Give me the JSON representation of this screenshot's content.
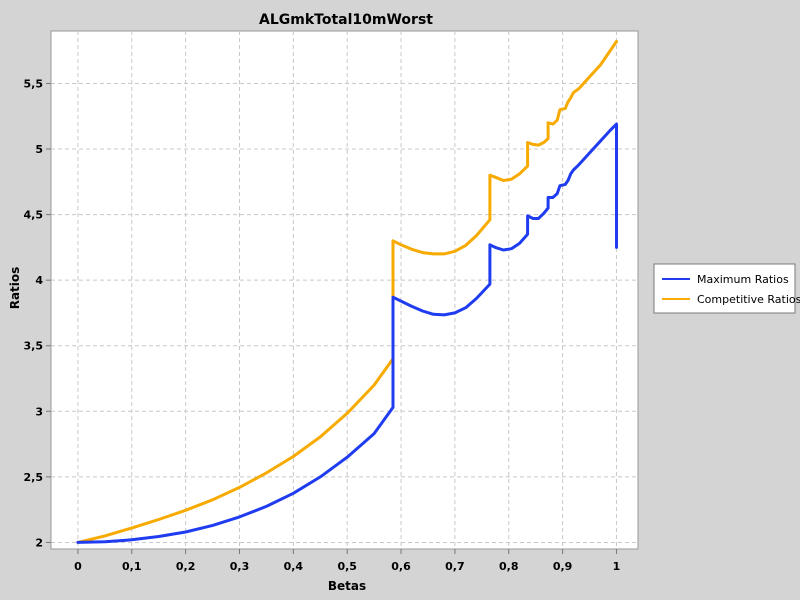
{
  "chart_data": {
    "type": "line",
    "title": "ALGmkTotal10mWorst",
    "xlabel": "Betas",
    "ylabel": "Ratios",
    "xlim": [
      -0.05,
      1.04
    ],
    "ylim": [
      1.95,
      5.9
    ],
    "x_ticks": [
      "0",
      "0,1",
      "0,2",
      "0,3",
      "0,4",
      "0,5",
      "0,6",
      "0,7",
      "0,8",
      "0,9",
      "1"
    ],
    "y_ticks": [
      "2",
      "2,5",
      "3",
      "3,5",
      "4",
      "4,5",
      "5",
      "5,5"
    ],
    "grid": true,
    "legend_position": "right",
    "series": [
      {
        "name": "Maximum Ratios",
        "color": "#1f3cf0",
        "points": [
          [
            0,
            2.0
          ],
          [
            0.05,
            2.005
          ],
          [
            0.1,
            2.02
          ],
          [
            0.15,
            2.045
          ],
          [
            0.2,
            2.08
          ],
          [
            0.25,
            2.13
          ],
          [
            0.3,
            2.195
          ],
          [
            0.35,
            2.275
          ],
          [
            0.4,
            2.375
          ],
          [
            0.45,
            2.5
          ],
          [
            0.5,
            2.65
          ],
          [
            0.55,
            2.83
          ],
          [
            0.585,
            3.03
          ],
          [
            0.585,
            3.87
          ],
          [
            0.6,
            3.84
          ],
          [
            0.62,
            3.8
          ],
          [
            0.64,
            3.765
          ],
          [
            0.66,
            3.74
          ],
          [
            0.68,
            3.735
          ],
          [
            0.7,
            3.75
          ],
          [
            0.72,
            3.79
          ],
          [
            0.74,
            3.86
          ],
          [
            0.765,
            3.97
          ],
          [
            0.765,
            4.27
          ],
          [
            0.775,
            4.25
          ],
          [
            0.79,
            4.23
          ],
          [
            0.805,
            4.24
          ],
          [
            0.82,
            4.28
          ],
          [
            0.835,
            4.35
          ],
          [
            0.835,
            4.49
          ],
          [
            0.845,
            4.47
          ],
          [
            0.855,
            4.47
          ],
          [
            0.865,
            4.51
          ],
          [
            0.873,
            4.55
          ],
          [
            0.873,
            4.63
          ],
          [
            0.882,
            4.63
          ],
          [
            0.89,
            4.66
          ],
          [
            0.895,
            4.72
          ],
          [
            0.905,
            4.73
          ],
          [
            0.91,
            4.76
          ],
          [
            0.915,
            4.81
          ],
          [
            0.92,
            4.84
          ],
          [
            0.93,
            4.88
          ],
          [
            0.95,
            4.97
          ],
          [
            0.97,
            5.06
          ],
          [
            0.99,
            5.15
          ],
          [
            1.0,
            5.19
          ],
          [
            1.0,
            4.25
          ]
        ]
      },
      {
        "name": "Competitive Ratios",
        "color": "#f7aa00",
        "points": [
          [
            0,
            2.0
          ],
          [
            0.05,
            2.05
          ],
          [
            0.1,
            2.11
          ],
          [
            0.15,
            2.175
          ],
          [
            0.2,
            2.245
          ],
          [
            0.25,
            2.325
          ],
          [
            0.3,
            2.42
          ],
          [
            0.35,
            2.53
          ],
          [
            0.4,
            2.655
          ],
          [
            0.45,
            2.805
          ],
          [
            0.5,
            2.985
          ],
          [
            0.55,
            3.2
          ],
          [
            0.585,
            3.4
          ],
          [
            0.585,
            4.3
          ],
          [
            0.6,
            4.27
          ],
          [
            0.62,
            4.235
          ],
          [
            0.64,
            4.21
          ],
          [
            0.66,
            4.2
          ],
          [
            0.68,
            4.2
          ],
          [
            0.7,
            4.22
          ],
          [
            0.72,
            4.265
          ],
          [
            0.74,
            4.34
          ],
          [
            0.765,
            4.46
          ],
          [
            0.765,
            4.8
          ],
          [
            0.775,
            4.785
          ],
          [
            0.79,
            4.76
          ],
          [
            0.805,
            4.77
          ],
          [
            0.82,
            4.81
          ],
          [
            0.835,
            4.87
          ],
          [
            0.835,
            5.05
          ],
          [
            0.845,
            5.035
          ],
          [
            0.855,
            5.03
          ],
          [
            0.865,
            5.05
          ],
          [
            0.873,
            5.08
          ],
          [
            0.873,
            5.2
          ],
          [
            0.882,
            5.19
          ],
          [
            0.89,
            5.22
          ],
          [
            0.895,
            5.3
          ],
          [
            0.905,
            5.31
          ],
          [
            0.91,
            5.36
          ],
          [
            0.915,
            5.39
          ],
          [
            0.92,
            5.43
          ],
          [
            0.93,
            5.46
          ],
          [
            0.95,
            5.55
          ],
          [
            0.97,
            5.64
          ],
          [
            0.99,
            5.76
          ],
          [
            1.0,
            5.82
          ]
        ]
      }
    ]
  }
}
